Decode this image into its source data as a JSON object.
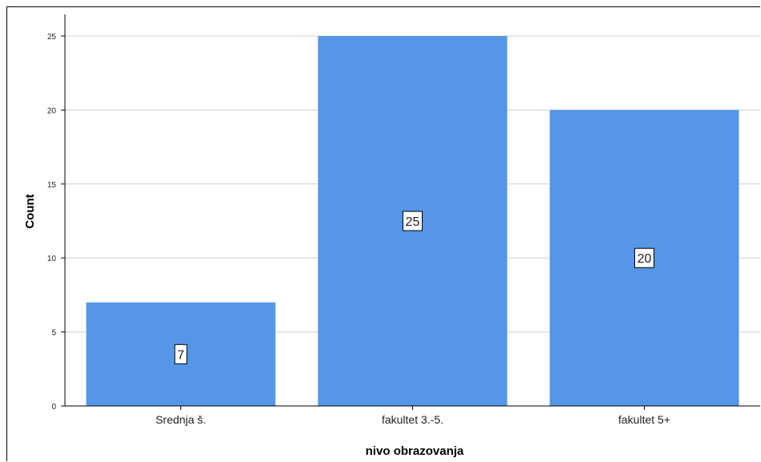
{
  "chart_data": {
    "type": "bar",
    "categories": [
      "Srednja š.",
      "fakultet 3.-5.",
      "fakultet 5+"
    ],
    "values": [
      7,
      25,
      20
    ],
    "data_labels": [
      "7",
      "25",
      "20"
    ],
    "xlabel": "nivo obrazovanja",
    "ylabel": "Count",
    "ylim": [
      0,
      25
    ],
    "yticks": [
      0,
      5,
      10,
      15,
      20,
      25
    ],
    "grid": true,
    "colors": {
      "bar": "#5596e6",
      "grid": "#d0d0d0",
      "axis": "#000000"
    }
  }
}
